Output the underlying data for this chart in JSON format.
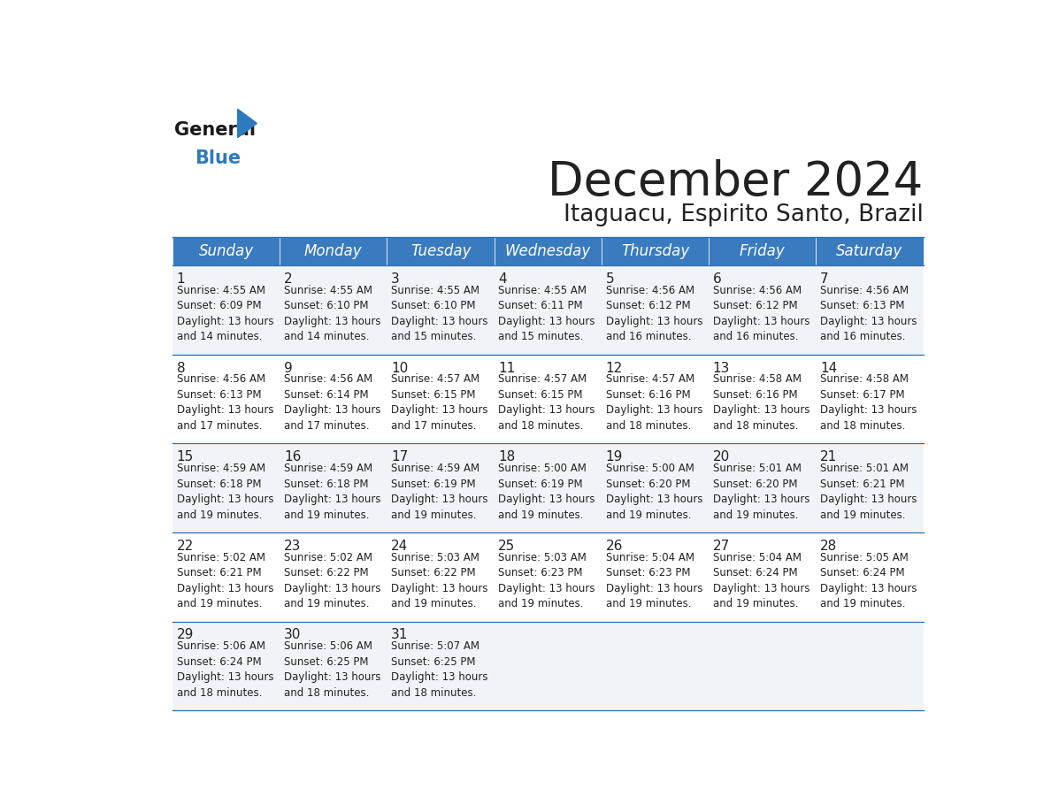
{
  "title": "December 2024",
  "subtitle": "Itaguacu, Espirito Santo, Brazil",
  "header_color": "#3a7abf",
  "header_text_color": "#ffffff",
  "days_of_week": [
    "Sunday",
    "Monday",
    "Tuesday",
    "Wednesday",
    "Thursday",
    "Friday",
    "Saturday"
  ],
  "weeks": [
    [
      {
        "day": 1,
        "sunrise": "4:55 AM",
        "sunset": "6:09 PM",
        "daylight": "13 hours and 14 minutes."
      },
      {
        "day": 2,
        "sunrise": "4:55 AM",
        "sunset": "6:10 PM",
        "daylight": "13 hours and 14 minutes."
      },
      {
        "day": 3,
        "sunrise": "4:55 AM",
        "sunset": "6:10 PM",
        "daylight": "13 hours and 15 minutes."
      },
      {
        "day": 4,
        "sunrise": "4:55 AM",
        "sunset": "6:11 PM",
        "daylight": "13 hours and 15 minutes."
      },
      {
        "day": 5,
        "sunrise": "4:56 AM",
        "sunset": "6:12 PM",
        "daylight": "13 hours and 16 minutes."
      },
      {
        "day": 6,
        "sunrise": "4:56 AM",
        "sunset": "6:12 PM",
        "daylight": "13 hours and 16 minutes."
      },
      {
        "day": 7,
        "sunrise": "4:56 AM",
        "sunset": "6:13 PM",
        "daylight": "13 hours and 16 minutes."
      }
    ],
    [
      {
        "day": 8,
        "sunrise": "4:56 AM",
        "sunset": "6:13 PM",
        "daylight": "13 hours and 17 minutes."
      },
      {
        "day": 9,
        "sunrise": "4:56 AM",
        "sunset": "6:14 PM",
        "daylight": "13 hours and 17 minutes."
      },
      {
        "day": 10,
        "sunrise": "4:57 AM",
        "sunset": "6:15 PM",
        "daylight": "13 hours and 17 minutes."
      },
      {
        "day": 11,
        "sunrise": "4:57 AM",
        "sunset": "6:15 PM",
        "daylight": "13 hours and 18 minutes."
      },
      {
        "day": 12,
        "sunrise": "4:57 AM",
        "sunset": "6:16 PM",
        "daylight": "13 hours and 18 minutes."
      },
      {
        "day": 13,
        "sunrise": "4:58 AM",
        "sunset": "6:16 PM",
        "daylight": "13 hours and 18 minutes."
      },
      {
        "day": 14,
        "sunrise": "4:58 AM",
        "sunset": "6:17 PM",
        "daylight": "13 hours and 18 minutes."
      }
    ],
    [
      {
        "day": 15,
        "sunrise": "4:59 AM",
        "sunset": "6:18 PM",
        "daylight": "13 hours and 19 minutes."
      },
      {
        "day": 16,
        "sunrise": "4:59 AM",
        "sunset": "6:18 PM",
        "daylight": "13 hours and 19 minutes."
      },
      {
        "day": 17,
        "sunrise": "4:59 AM",
        "sunset": "6:19 PM",
        "daylight": "13 hours and 19 minutes."
      },
      {
        "day": 18,
        "sunrise": "5:00 AM",
        "sunset": "6:19 PM",
        "daylight": "13 hours and 19 minutes."
      },
      {
        "day": 19,
        "sunrise": "5:00 AM",
        "sunset": "6:20 PM",
        "daylight": "13 hours and 19 minutes."
      },
      {
        "day": 20,
        "sunrise": "5:01 AM",
        "sunset": "6:20 PM",
        "daylight": "13 hours and 19 minutes."
      },
      {
        "day": 21,
        "sunrise": "5:01 AM",
        "sunset": "6:21 PM",
        "daylight": "13 hours and 19 minutes."
      }
    ],
    [
      {
        "day": 22,
        "sunrise": "5:02 AM",
        "sunset": "6:21 PM",
        "daylight": "13 hours and 19 minutes."
      },
      {
        "day": 23,
        "sunrise": "5:02 AM",
        "sunset": "6:22 PM",
        "daylight": "13 hours and 19 minutes."
      },
      {
        "day": 24,
        "sunrise": "5:03 AM",
        "sunset": "6:22 PM",
        "daylight": "13 hours and 19 minutes."
      },
      {
        "day": 25,
        "sunrise": "5:03 AM",
        "sunset": "6:23 PM",
        "daylight": "13 hours and 19 minutes."
      },
      {
        "day": 26,
        "sunrise": "5:04 AM",
        "sunset": "6:23 PM",
        "daylight": "13 hours and 19 minutes."
      },
      {
        "day": 27,
        "sunrise": "5:04 AM",
        "sunset": "6:24 PM",
        "daylight": "13 hours and 19 minutes."
      },
      {
        "day": 28,
        "sunrise": "5:05 AM",
        "sunset": "6:24 PM",
        "daylight": "13 hours and 19 minutes."
      }
    ],
    [
      {
        "day": 29,
        "sunrise": "5:06 AM",
        "sunset": "6:24 PM",
        "daylight": "13 hours and 18 minutes."
      },
      {
        "day": 30,
        "sunrise": "5:06 AM",
        "sunset": "6:25 PM",
        "daylight": "13 hours and 18 minutes."
      },
      {
        "day": 31,
        "sunrise": "5:07 AM",
        "sunset": "6:25 PM",
        "daylight": "13 hours and 18 minutes."
      },
      null,
      null,
      null,
      null
    ]
  ],
  "bg_color_even": "#f0f4f8",
  "bg_color_odd": "#ffffff",
  "cell_border_color": "#2e6da4",
  "text_color": "#222222",
  "logo_general_color": "#1a1a1a",
  "logo_blue_color": "#2e7abf",
  "title_fontsize": 38,
  "subtitle_fontsize": 19,
  "header_fontsize": 12,
  "day_num_fontsize": 11,
  "cell_text_fontsize": 8.5
}
